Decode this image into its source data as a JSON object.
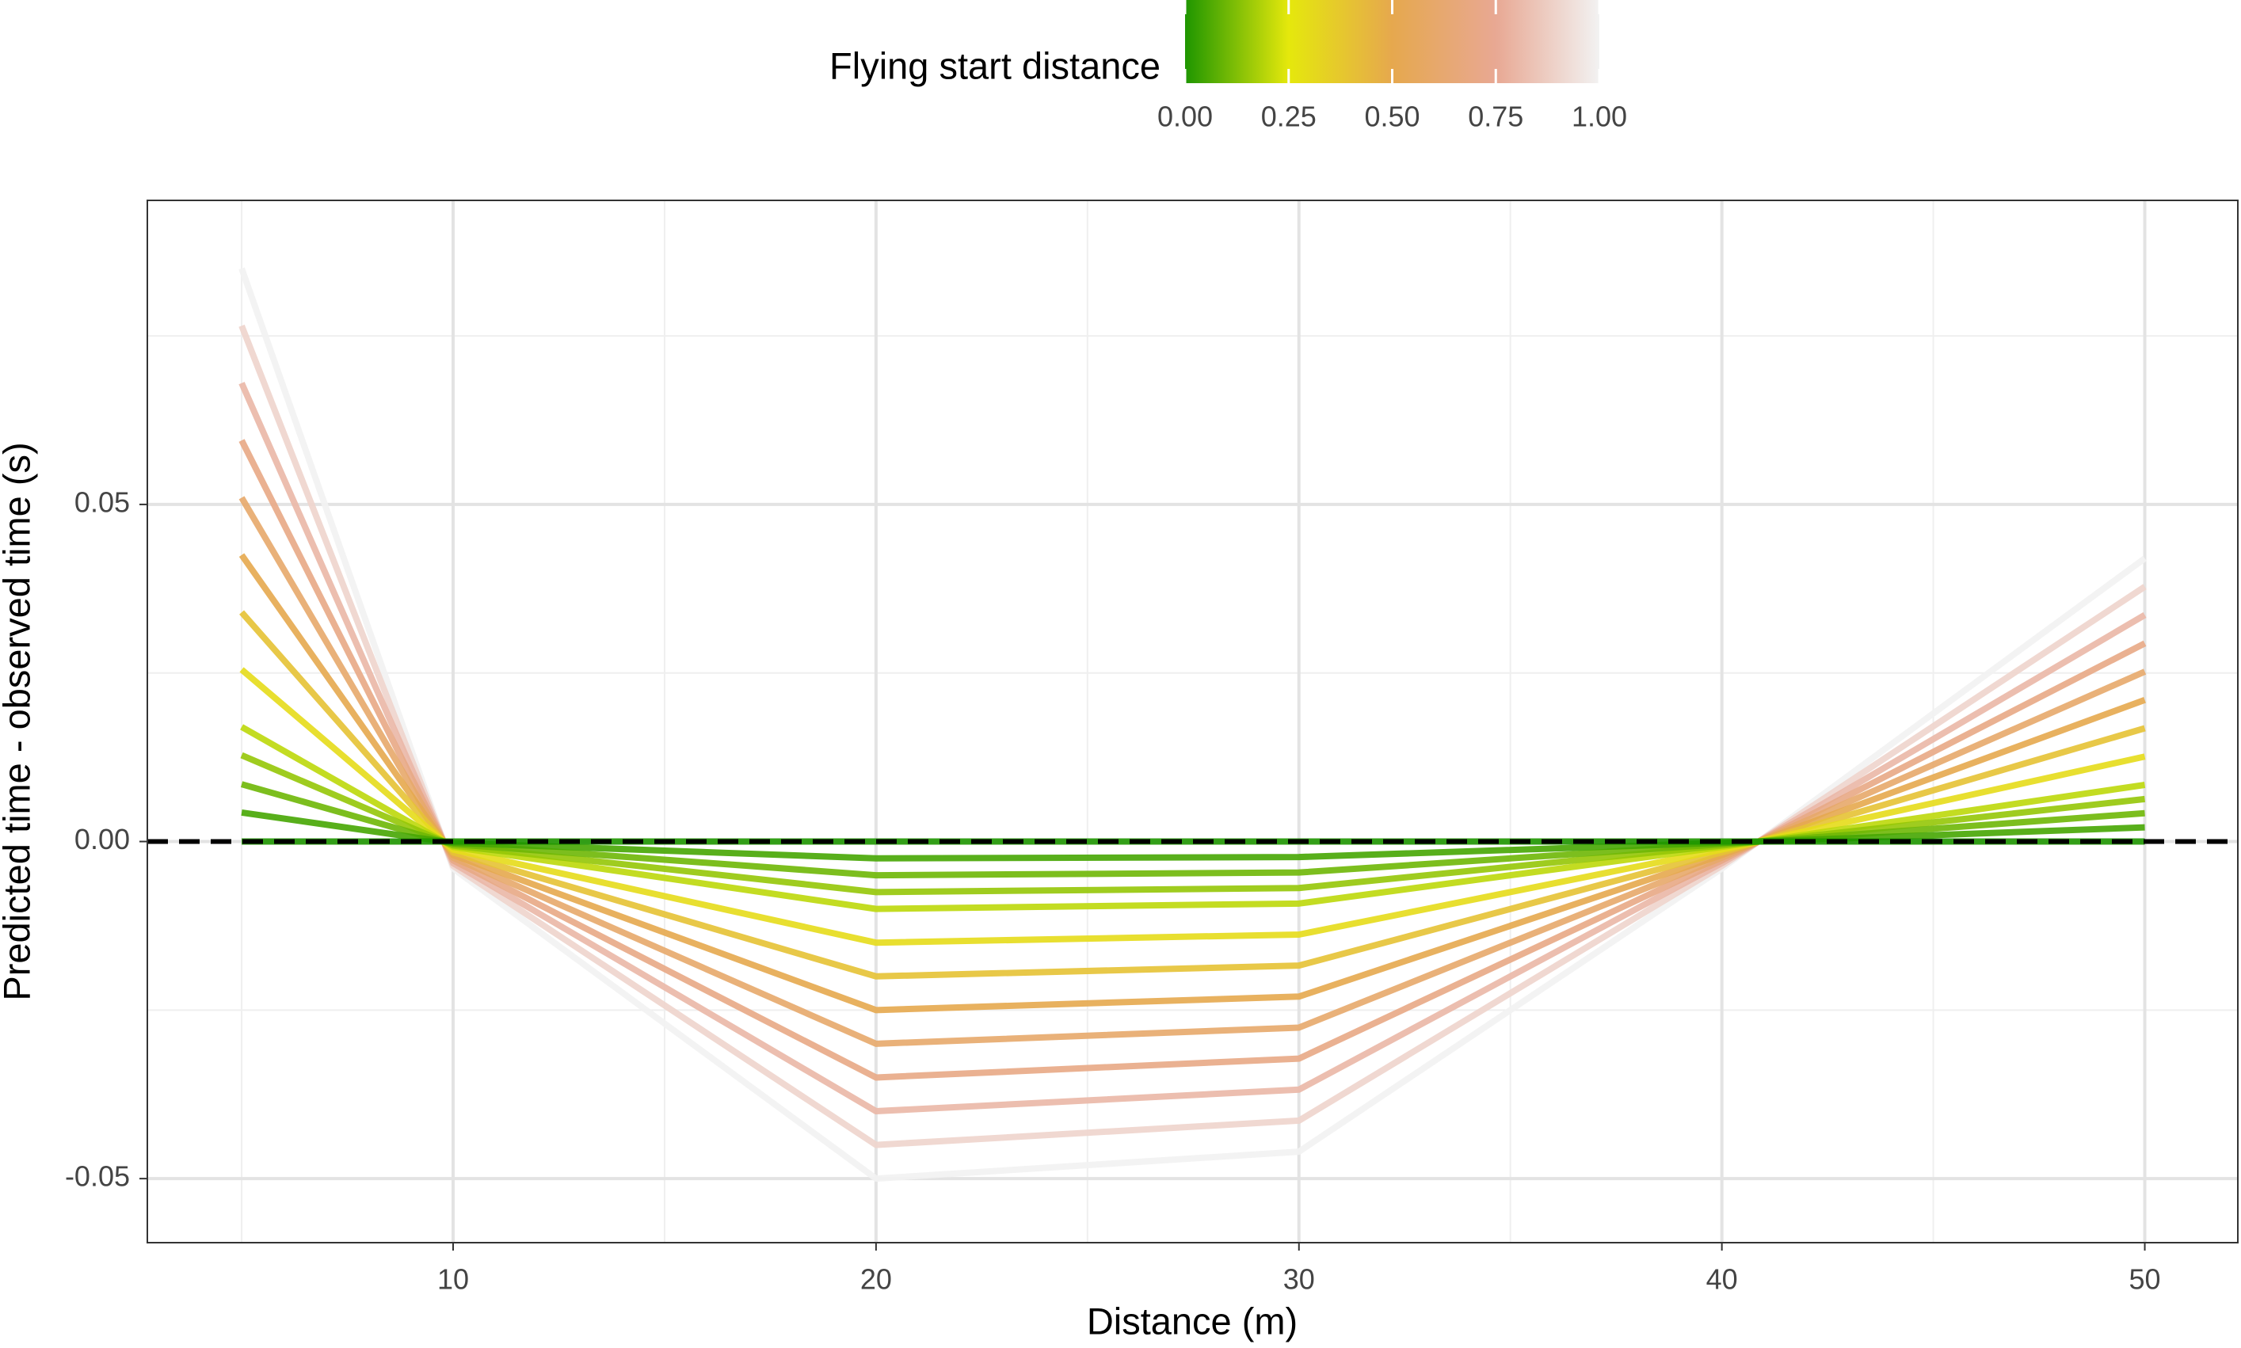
{
  "chart_data": {
    "type": "line",
    "x_label": "Distance (m)",
    "y_label": "Predicted time - observed time (s)",
    "legend_title": "Flying start distance",
    "colorscale": [
      [
        0,
        "#1e9600"
      ],
      [
        0.25,
        "#e5e80c"
      ],
      [
        0.5,
        "#e6a84e"
      ],
      [
        0.75,
        "#e8a893"
      ],
      [
        1,
        "#f2f2f2"
      ]
    ],
    "colorbar_ticks": [
      {
        "value": 0,
        "label": "0.00"
      },
      0.25,
      {
        "value": 0.5,
        "label": "0.50"
      },
      0.75,
      {
        "value": 1,
        "label": "1.00"
      }
    ],
    "x": [
      5,
      10,
      20,
      30,
      40,
      50
    ],
    "series": [
      {
        "flying_start": 0,
        "values": [
          0,
          0,
          0,
          0,
          0,
          0
        ]
      },
      {
        "flying_start": 0.05,
        "values": [
          0.0043,
          -0.0002,
          -0.0025,
          -0.0023,
          -0.0002,
          0.0021
        ]
      },
      {
        "flying_start": 0.1,
        "values": [
          0.0085,
          -0.0004,
          -0.005,
          -0.0046,
          -0.0004,
          0.0042
        ]
      },
      {
        "flying_start": 0.15,
        "values": [
          0.0128,
          -0.0006,
          -0.0075,
          -0.0069,
          -0.0006,
          0.0063
        ]
      },
      {
        "flying_start": 0.2,
        "values": [
          0.017,
          -0.0008,
          -0.01,
          -0.0092,
          -0.0008,
          0.0084
        ]
      },
      {
        "flying_start": 0.3,
        "values": [
          0.0255,
          -0.0012,
          -0.015,
          -0.0138,
          -0.0012,
          0.0126
        ]
      },
      {
        "flying_start": 0.4,
        "values": [
          0.034,
          -0.0016,
          -0.02,
          -0.0184,
          -0.0016,
          0.0168
        ]
      },
      {
        "flying_start": 0.5,
        "values": [
          0.0425,
          -0.002,
          -0.025,
          -0.023,
          -0.002,
          0.021
        ]
      },
      {
        "flying_start": 0.6,
        "values": [
          0.051,
          -0.0024,
          -0.03,
          -0.0276,
          -0.0024,
          0.0252
        ]
      },
      {
        "flying_start": 0.7,
        "values": [
          0.0595,
          -0.0028,
          -0.035,
          -0.0322,
          -0.0028,
          0.0294
        ]
      },
      {
        "flying_start": 0.8,
        "values": [
          0.068,
          -0.0032,
          -0.04,
          -0.0368,
          -0.0032,
          0.0336
        ]
      },
      {
        "flying_start": 0.9,
        "values": [
          0.0765,
          -0.0036,
          -0.045,
          -0.0414,
          -0.0036,
          0.0378
        ]
      },
      {
        "flying_start": 1,
        "values": [
          0.085,
          -0.004,
          -0.05,
          -0.046,
          -0.004,
          0.042
        ]
      }
    ],
    "xlim": [
      2.77,
      52.2
    ],
    "xticks": [
      10,
      20,
      30,
      40,
      50
    ],
    "x_minor_grid": [
      5,
      15,
      25,
      35,
      45
    ],
    "ylim": [
      -0.0595,
      0.0951
    ],
    "yticks": [
      {
        "value": -0.05,
        "label": "-0.05"
      },
      {
        "value": 0,
        "label": "0.00"
      },
      0.05
    ],
    "y_minor_grid": [
      -0.025,
      0.025,
      0.075
    ],
    "hline": 0,
    "grid": true
  }
}
